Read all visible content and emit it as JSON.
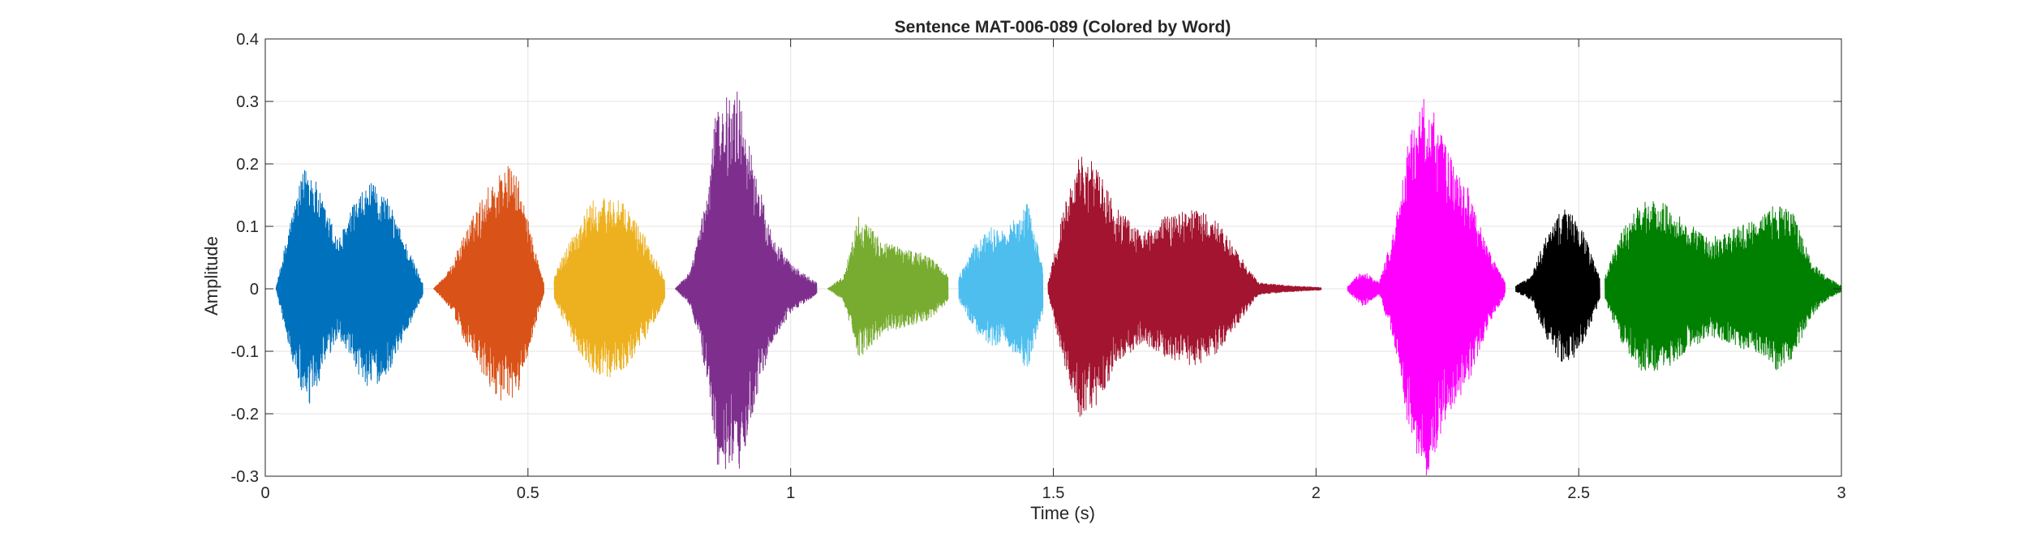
{
  "chart_data": {
    "type": "line",
    "title": "Sentence MAT-006-089 (Colored by Word)",
    "xlabel": "Time (s)",
    "ylabel": "Amplitude",
    "xlim": [
      0,
      3
    ],
    "ylim": [
      -0.3,
      0.4
    ],
    "xticks": [
      0,
      0.5,
      1,
      1.5,
      2,
      2.5,
      3
    ],
    "xtick_labels": [
      "0",
      "0.5",
      "1",
      "1.5",
      "2",
      "2.5",
      "3"
    ],
    "yticks": [
      -0.3,
      -0.2,
      -0.1,
      0,
      0.1,
      0.2,
      0.3,
      0.4
    ],
    "ytick_labels": [
      "-0.3",
      "-0.2",
      "-0.1",
      "0",
      "0.1",
      "0.2",
      "0.3",
      "0.4"
    ],
    "grid": true,
    "legend": "none",
    "series": [
      {
        "color": "#0072BD",
        "t_start": 0.02,
        "t_end": 0.3,
        "envelope": [
          [
            0.02,
            0.0
          ],
          [
            0.05,
            0.12
          ],
          [
            0.08,
            0.21
          ],
          [
            0.11,
            0.14
          ],
          [
            0.14,
            0.08
          ],
          [
            0.17,
            0.14
          ],
          [
            0.2,
            0.17
          ],
          [
            0.23,
            0.15
          ],
          [
            0.26,
            0.09
          ],
          [
            0.3,
            0.01
          ]
        ]
      },
      {
        "color": "#D95319",
        "t_start": 0.32,
        "t_end": 0.53,
        "envelope": [
          [
            0.32,
            0.0
          ],
          [
            0.35,
            0.03
          ],
          [
            0.38,
            0.09
          ],
          [
            0.42,
            0.16
          ],
          [
            0.46,
            0.2
          ],
          [
            0.48,
            0.18
          ],
          [
            0.5,
            0.11
          ],
          [
            0.53,
            0.01
          ]
        ]
      },
      {
        "color": "#EDB120",
        "t_start": 0.55,
        "t_end": 0.76,
        "envelope": [
          [
            0.55,
            0.02
          ],
          [
            0.58,
            0.08
          ],
          [
            0.62,
            0.14
          ],
          [
            0.66,
            0.15
          ],
          [
            0.69,
            0.13
          ],
          [
            0.72,
            0.09
          ],
          [
            0.76,
            0.02
          ]
        ]
      },
      {
        "color": "#7E2F8E",
        "t_start": 0.78,
        "t_end": 1.05,
        "envelope": [
          [
            0.78,
            0.0
          ],
          [
            0.81,
            0.03
          ],
          [
            0.84,
            0.15
          ],
          [
            0.86,
            0.3
          ],
          [
            0.9,
            0.32
          ],
          [
            0.93,
            0.2
          ],
          [
            0.96,
            0.1
          ],
          [
            1.0,
            0.04
          ],
          [
            1.05,
            0.01
          ]
        ]
      },
      {
        "color": "#77AC30",
        "t_start": 1.07,
        "t_end": 1.3,
        "envelope": [
          [
            1.07,
            0.0
          ],
          [
            1.1,
            0.02
          ],
          [
            1.13,
            0.12
          ],
          [
            1.17,
            0.08
          ],
          [
            1.2,
            0.07
          ],
          [
            1.24,
            0.06
          ],
          [
            1.27,
            0.05
          ],
          [
            1.3,
            0.02
          ]
        ]
      },
      {
        "color": "#4DBEEE",
        "t_start": 1.32,
        "t_end": 1.48,
        "envelope": [
          [
            1.32,
            0.02
          ],
          [
            1.35,
            0.07
          ],
          [
            1.38,
            0.1
          ],
          [
            1.41,
            0.09
          ],
          [
            1.43,
            0.12
          ],
          [
            1.45,
            0.14
          ],
          [
            1.48,
            0.04
          ]
        ]
      },
      {
        "color": "#A2142F",
        "t_start": 1.49,
        "t_end": 2.01,
        "envelope": [
          [
            1.49,
            0.01
          ],
          [
            1.52,
            0.13
          ],
          [
            1.55,
            0.22
          ],
          [
            1.58,
            0.2
          ],
          [
            1.62,
            0.13
          ],
          [
            1.67,
            0.09
          ],
          [
            1.72,
            0.12
          ],
          [
            1.77,
            0.13
          ],
          [
            1.81,
            0.11
          ],
          [
            1.85,
            0.06
          ],
          [
            1.89,
            0.01
          ],
          [
            1.95,
            0.005
          ],
          [
            2.01,
            0.002
          ]
        ]
      },
      {
        "color": "#FF00FF",
        "t_start": 2.06,
        "t_end": 2.36,
        "envelope": [
          [
            2.06,
            0.005
          ],
          [
            2.09,
            0.03
          ],
          [
            2.12,
            0.01
          ],
          [
            2.15,
            0.1
          ],
          [
            2.18,
            0.26
          ],
          [
            2.21,
            0.32
          ],
          [
            2.25,
            0.22
          ],
          [
            2.29,
            0.16
          ],
          [
            2.33,
            0.06
          ],
          [
            2.36,
            0.01
          ]
        ]
      },
      {
        "color": "#000000",
        "t_start": 2.38,
        "t_end": 2.54,
        "envelope": [
          [
            2.38,
            0.005
          ],
          [
            2.41,
            0.02
          ],
          [
            2.43,
            0.07
          ],
          [
            2.46,
            0.12
          ],
          [
            2.48,
            0.13
          ],
          [
            2.51,
            0.09
          ],
          [
            2.54,
            0.02
          ]
        ]
      },
      {
        "color": "#008000",
        "t_start": 2.55,
        "t_end": 3.0,
        "envelope": [
          [
            2.55,
            0.02
          ],
          [
            2.58,
            0.09
          ],
          [
            2.62,
            0.14
          ],
          [
            2.66,
            0.14
          ],
          [
            2.7,
            0.11
          ],
          [
            2.75,
            0.08
          ],
          [
            2.8,
            0.1
          ],
          [
            2.84,
            0.11
          ],
          [
            2.88,
            0.14
          ],
          [
            2.91,
            0.12
          ],
          [
            2.94,
            0.05
          ],
          [
            2.97,
            0.02
          ],
          [
            3.0,
            0.005
          ]
        ]
      }
    ]
  }
}
